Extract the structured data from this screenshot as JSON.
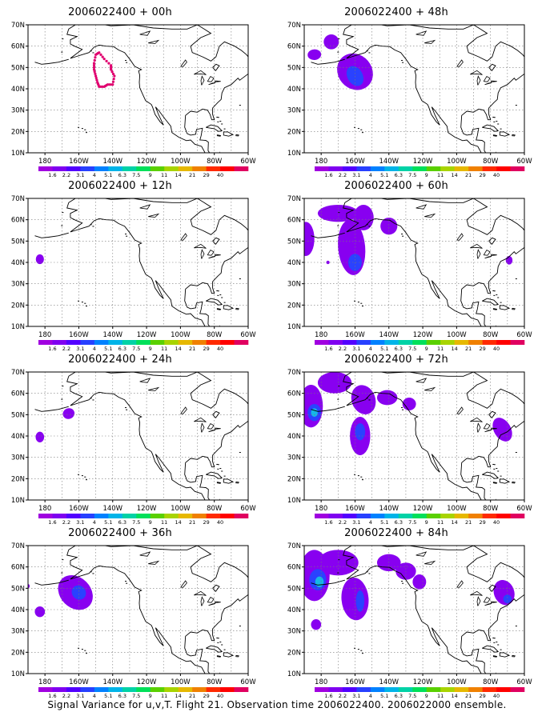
{
  "caption": "Signal Variance for u,v,T. Flight 21. Observation time 2006022400. 2006022000 ensemble.",
  "y_ticks": [
    "10N",
    "20N",
    "30N",
    "40N",
    "50N",
    "60N",
    "70N"
  ],
  "x_ticks": [
    "180",
    "160W",
    "140W",
    "120W",
    "100W",
    "80W",
    "60W"
  ],
  "colorbar": {
    "labels": [
      "1.6",
      "2.2",
      "3.1",
      "4",
      "5.1",
      "6.3",
      "7.5",
      "9",
      "11",
      "14",
      "21",
      "29",
      "40"
    ],
    "colors": [
      "#a000e0",
      "#7f00f0",
      "#5200ff",
      "#2740ff",
      "#0081ff",
      "#00b4e8",
      "#00d2a6",
      "#00e05a",
      "#5ad000",
      "#a8d400",
      "#e6b800",
      "#f08000",
      "#ff2a00",
      "#ff0000",
      "#e00060"
    ]
  },
  "panels": [
    {
      "title": "2006022400 + 00h"
    },
    {
      "title": "2006022400 + 12h"
    },
    {
      "title": "2006022400 + 24h"
    },
    {
      "title": "2006022400 + 36h"
    },
    {
      "title": "2006022400 + 48h"
    },
    {
      "title": "2006022400 + 60h"
    },
    {
      "title": "2006022400 + 72h"
    },
    {
      "title": "2006022400 + 84h"
    }
  ],
  "colors": {
    "purple": "#8800f0",
    "blue": "#2a42ff",
    "cyan": "#16b8e6",
    "track": "#e0006f"
  }
}
